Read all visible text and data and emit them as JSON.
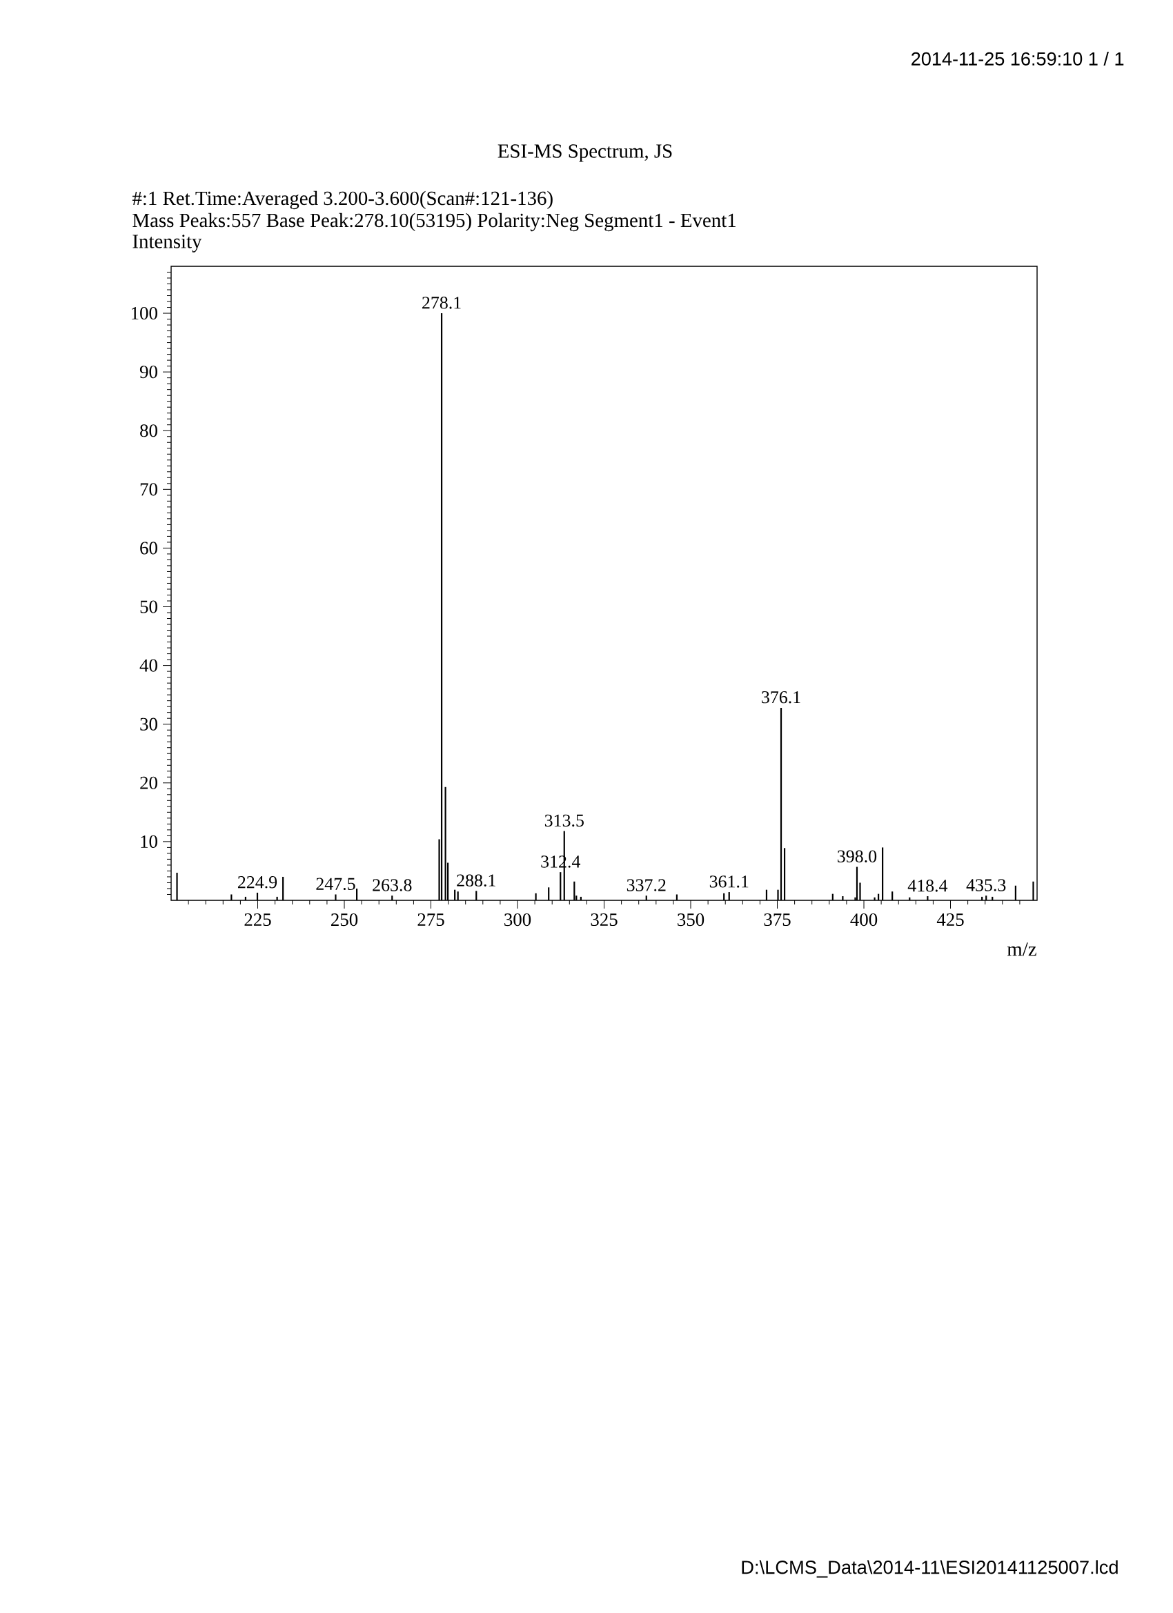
{
  "chart_data": {
    "type": "bar",
    "title": "ESI-MS Spectrum, JS",
    "subtitle": "#:1   Ret.Time:Averaged 3.200-3.600(Scan#:121-136)",
    "xlabel": "m/z",
    "ylabel": "Intensity",
    "x": [
      201.7,
      217.4,
      221.5,
      224.9,
      230.6,
      232.3,
      247.5,
      253.6,
      263.8,
      277.4,
      278.1,
      279.2,
      279.9,
      281.9,
      282.8,
      288.1,
      305.3,
      309.0,
      312.4,
      313.5,
      316.4,
      317.0,
      318.3,
      337.2,
      346.0,
      359.6,
      361.1,
      371.9,
      375.2,
      376.1,
      377.1,
      391.0,
      393.9,
      397.5,
      398.0,
      398.9,
      403.1,
      404.2,
      405.4,
      408.2,
      413.2,
      418.4,
      434.1,
      435.3,
      437.1,
      443.8,
      448.9
    ],
    "values": [
      4.7,
      1.0,
      0.6,
      1.3,
      0.6,
      4.0,
      1.0,
      2.0,
      0.8,
      10.4,
      100,
      19.3,
      6.4,
      1.8,
      1.5,
      1.6,
      1.2,
      2.2,
      4.8,
      11.8,
      3.2,
      0.8,
      0.6,
      0.8,
      1.0,
      1.2,
      1.4,
      1.8,
      1.8,
      32.8,
      8.9,
      1.1,
      0.7,
      0.5,
      5.7,
      3.0,
      0.5,
      1.1,
      9.0,
      1.5,
      0.5,
      0.7,
      0.6,
      0.8,
      0.6,
      2.5,
      3.2
    ],
    "color": "#000000",
    "xlim": [
      200,
      450
    ],
    "xticks": [
      {
        "value": 205,
        "label": null
      },
      {
        "value": 210,
        "label": null
      },
      {
        "value": 215,
        "label": null
      },
      {
        "value": 220,
        "label": null
      },
      225,
      {
        "value": 230,
        "label": null
      },
      {
        "value": 235,
        "label": null
      },
      {
        "value": 240,
        "label": null
      },
      {
        "value": 245,
        "label": null
      },
      250,
      {
        "value": 255,
        "label": null
      },
      {
        "value": 260,
        "label": null
      },
      {
        "value": 265,
        "label": null
      },
      {
        "value": 270,
        "label": null
      },
      275,
      {
        "value": 280,
        "label": null
      },
      {
        "value": 285,
        "label": null
      },
      {
        "value": 290,
        "label": null
      },
      {
        "value": 295,
        "label": null
      },
      300,
      {
        "value": 305,
        "label": null
      },
      {
        "value": 310,
        "label": null
      },
      {
        "value": 315,
        "label": null
      },
      {
        "value": 320,
        "label": null
      },
      325,
      {
        "value": 330,
        "label": null
      },
      {
        "value": 335,
        "label": null
      },
      {
        "value": 340,
        "label": null
      },
      {
        "value": 345,
        "label": null
      },
      350,
      {
        "value": 355,
        "label": null
      },
      {
        "value": 360,
        "label": null
      },
      {
        "value": 365,
        "label": null
      },
      {
        "value": 370,
        "label": null
      },
      375,
      {
        "value": 380,
        "label": null
      },
      {
        "value": 385,
        "label": null
      },
      {
        "value": 390,
        "label": null
      },
      {
        "value": 395,
        "label": null
      },
      400,
      {
        "value": 405,
        "label": null
      },
      {
        "value": 410,
        "label": null
      },
      {
        "value": 415,
        "label": null
      },
      {
        "value": 420,
        "label": null
      },
      425,
      {
        "value": 430,
        "label": null
      },
      {
        "value": 435,
        "label": null
      },
      {
        "value": 440,
        "label": null
      },
      {
        "value": 445,
        "label": null
      }
    ],
    "ylim": [
      0,
      108
    ],
    "yticks": [
      {
        "value": 1,
        "label": null
      },
      {
        "value": 2,
        "label": null
      },
      {
        "value": 3,
        "label": null
      },
      {
        "value": 4,
        "label": null
      },
      {
        "value": 5,
        "label": null
      },
      {
        "value": 6,
        "label": null
      },
      {
        "value": 7,
        "label": null
      },
      {
        "value": 8,
        "label": null
      },
      {
        "value": 9,
        "label": null
      },
      10,
      {
        "value": 11,
        "label": null
      },
      {
        "value": 12,
        "label": null
      },
      {
        "value": 13,
        "label": null
      },
      {
        "value": 14,
        "label": null
      },
      {
        "value": 15,
        "label": null
      },
      {
        "value": 16,
        "label": null
      },
      {
        "value": 17,
        "label": null
      },
      {
        "value": 18,
        "label": null
      },
      {
        "value": 19,
        "label": null
      },
      20,
      {
        "value": 21,
        "label": null
      },
      {
        "value": 22,
        "label": null
      },
      {
        "value": 23,
        "label": null
      },
      {
        "value": 24,
        "label": null
      },
      {
        "value": 25,
        "label": null
      },
      {
        "value": 26,
        "label": null
      },
      {
        "value": 27,
        "label": null
      },
      {
        "value": 28,
        "label": null
      },
      {
        "value": 29,
        "label": null
      },
      30,
      {
        "value": 31,
        "label": null
      },
      {
        "value": 32,
        "label": null
      },
      {
        "value": 33,
        "label": null
      },
      {
        "value": 34,
        "label": null
      },
      {
        "value": 35,
        "label": null
      },
      {
        "value": 36,
        "label": null
      },
      {
        "value": 37,
        "label": null
      },
      {
        "value": 38,
        "label": null
      },
      {
        "value": 39,
        "label": null
      },
      40,
      {
        "value": 41,
        "label": null
      },
      {
        "value": 42,
        "label": null
      },
      {
        "value": 43,
        "label": null
      },
      {
        "value": 44,
        "label": null
      },
      {
        "value": 45,
        "label": null
      },
      {
        "value": 46,
        "label": null
      },
      {
        "value": 47,
        "label": null
      },
      {
        "value": 48,
        "label": null
      },
      {
        "value": 49,
        "label": null
      },
      50,
      {
        "value": 51,
        "label": null
      },
      {
        "value": 52,
        "label": null
      },
      {
        "value": 53,
        "label": null
      },
      {
        "value": 54,
        "label": null
      },
      {
        "value": 55,
        "label": null
      },
      {
        "value": 56,
        "label": null
      },
      {
        "value": 57,
        "label": null
      },
      {
        "value": 58,
        "label": null
      },
      {
        "value": 59,
        "label": null
      },
      60,
      {
        "value": 61,
        "label": null
      },
      {
        "value": 62,
        "label": null
      },
      {
        "value": 63,
        "label": null
      },
      {
        "value": 64,
        "label": null
      },
      {
        "value": 65,
        "label": null
      },
      {
        "value": 66,
        "label": null
      },
      {
        "value": 67,
        "label": null
      },
      {
        "value": 68,
        "label": null
      },
      {
        "value": 69,
        "label": null
      },
      70,
      {
        "value": 71,
        "label": null
      },
      {
        "value": 72,
        "label": null
      },
      {
        "value": 73,
        "label": null
      },
      {
        "value": 74,
        "label": null
      },
      {
        "value": 75,
        "label": null
      },
      {
        "value": 76,
        "label": null
      },
      {
        "value": 77,
        "label": null
      },
      {
        "value": 78,
        "label": null
      },
      {
        "value": 79,
        "label": null
      },
      80,
      {
        "value": 81,
        "label": null
      },
      {
        "value": 82,
        "label": null
      },
      {
        "value": 83,
        "label": null
      },
      {
        "value": 84,
        "label": null
      },
      {
        "value": 85,
        "label": null
      },
      {
        "value": 86,
        "label": null
      },
      {
        "value": 87,
        "label": null
      },
      {
        "value": 88,
        "label": null
      },
      {
        "value": 89,
        "label": null
      },
      90,
      {
        "value": 91,
        "label": null
      },
      {
        "value": 92,
        "label": null
      },
      {
        "value": 93,
        "label": null
      },
      {
        "value": 94,
        "label": null
      },
      {
        "value": 95,
        "label": null
      },
      {
        "value": 96,
        "label": null
      },
      {
        "value": 97,
        "label": null
      },
      {
        "value": 98,
        "label": null
      },
      {
        "value": 99,
        "label": null
      },
      100,
      {
        "value": 101,
        "label": null
      },
      {
        "value": 102,
        "label": null
      },
      {
        "value": 103,
        "label": null
      },
      {
        "value": 104,
        "label": null
      },
      {
        "value": 105,
        "label": null
      },
      {
        "value": 106,
        "label": null
      },
      {
        "value": 107,
        "label": null
      }
    ],
    "annotations": [
      "2014-11-25 16:59:10 1 / 1",
      "Mass Peaks:557   Base Peak:278.10(53195)  Polarity:Neg  Segment1 - Event1",
      "D:\\LCMS_Data\\2014-11\\ESI20141125007.lcd",
      {
        "text": "224.9",
        "x": 224.9,
        "y": 1.3
      },
      {
        "text": "247.5",
        "x": 247.5,
        "y": 1.0
      },
      {
        "text": "263.8",
        "x": 263.8,
        "y": 0.8
      },
      {
        "text": "278.1",
        "x": 278.1,
        "y": 100
      },
      {
        "text": "288.1",
        "x": 288.1,
        "y": 1.6
      },
      {
        "text": "312.4",
        "x": 312.4,
        "y": 4.8
      },
      {
        "text": "313.5",
        "x": 313.5,
        "y": 11.8
      },
      {
        "text": "337.2",
        "x": 337.2,
        "y": 0.8
      },
      {
        "text": "361.1",
        "x": 361.1,
        "y": 1.4
      },
      {
        "text": "376.1",
        "x": 376.1,
        "y": 32.8
      },
      {
        "text": "398.0",
        "x": 398.0,
        "y": 5.7
      },
      {
        "text": "418.4",
        "x": 418.4,
        "y": 0.7
      },
      {
        "text": "435.3",
        "x": 435.3,
        "y": 0.8
      }
    ]
  }
}
